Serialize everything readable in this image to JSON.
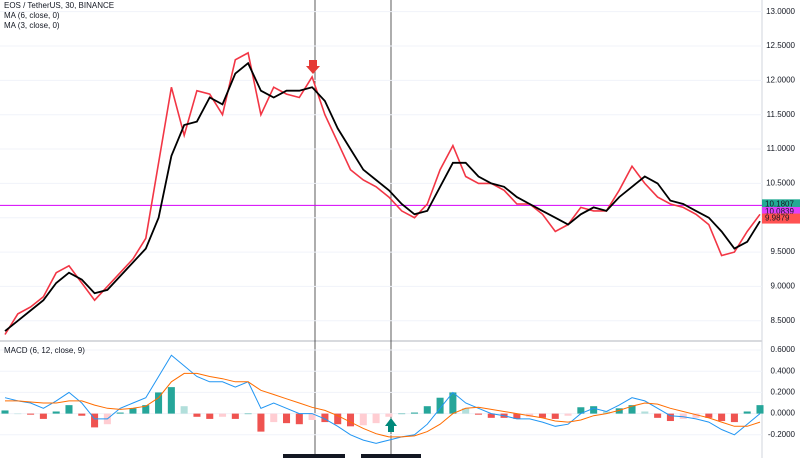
{
  "chart_data": [
    {
      "type": "line",
      "title": "EOS / TetherUS, 30, BINANCE",
      "ylim": [
        8.22,
        13.17
      ],
      "yticks": [
        {
          "value": 8.5,
          "label": "8.5000"
        },
        {
          "value": 9,
          "label": "9.0000"
        },
        {
          "value": 9.5,
          "label": "9.5000"
        },
        {
          "value": 10,
          "label": "10.0000"
        },
        {
          "value": 10.5,
          "label": "10.5000"
        },
        {
          "value": 11,
          "label": "11.0000"
        },
        {
          "value": 11.5,
          "label": "11.5000"
        },
        {
          "value": 12,
          "label": "12.0000"
        },
        {
          "value": 12.5,
          "label": "12.5000"
        },
        {
          "value": 13,
          "label": "13.0000"
        }
      ],
      "grid": true,
      "series": [
        {
          "name": "MA (6, close, 0)",
          "color": "#000000",
          "values": [
            8.35,
            8.5,
            8.65,
            8.8,
            9.05,
            9.2,
            9.1,
            8.9,
            8.95,
            9.15,
            9.35,
            9.55,
            10.0,
            10.9,
            11.35,
            11.4,
            11.75,
            11.65,
            12.1,
            12.25,
            11.85,
            11.75,
            11.85,
            11.85,
            11.9,
            11.7,
            11.3,
            11.0,
            10.7,
            10.55,
            10.4,
            10.2,
            10.05,
            10.1,
            10.45,
            10.8,
            10.8,
            10.6,
            10.5,
            10.45,
            10.3,
            10.2,
            10.1,
            10.0,
            9.9,
            10.05,
            10.15,
            10.1,
            10.3,
            10.45,
            10.6,
            10.5,
            10.25,
            10.2,
            10.1,
            10.0,
            9.8,
            9.55,
            9.65,
            9.95
          ]
        },
        {
          "name": "MA (3, close, 0)",
          "color": "#f23645",
          "values": [
            8.3,
            8.6,
            8.7,
            8.85,
            9.2,
            9.3,
            9.05,
            8.8,
            9.0,
            9.2,
            9.4,
            9.7,
            10.8,
            11.9,
            11.2,
            11.85,
            11.8,
            11.5,
            12.3,
            12.4,
            11.5,
            11.9,
            11.8,
            11.75,
            12.05,
            11.5,
            11.1,
            10.7,
            10.55,
            10.45,
            10.3,
            10.1,
            10.0,
            10.2,
            10.7,
            11.05,
            10.6,
            10.5,
            10.5,
            10.4,
            10.2,
            10.2,
            10.05,
            9.8,
            9.9,
            10.15,
            10.1,
            10.1,
            10.4,
            10.75,
            10.5,
            10.3,
            10.2,
            10.15,
            10.05,
            9.9,
            9.45,
            9.5,
            9.8,
            10.05
          ]
        }
      ],
      "hline_color": "#d500f9",
      "price_labels": [
        {
          "value": 10.1807,
          "color": "#22ab94"
        },
        {
          "value": 10.0839,
          "color": "#e040fb"
        },
        {
          "value": 9.9879,
          "color": "#ff5252"
        }
      ],
      "countdown": "24:38"
    },
    {
      "type": "macd",
      "title": "MACD (6, 12, close, 9)",
      "ylim": [
        -0.419,
        0.676
      ],
      "yticks": [
        {
          "value": -0.2,
          "label": "-0.2000"
        },
        {
          "value": 0,
          "label": "0.0000"
        },
        {
          "value": 0.2,
          "label": "0.2000"
        },
        {
          "value": 0.4,
          "label": "0.4000"
        },
        {
          "value": 0.6,
          "label": "0.6000"
        }
      ],
      "grid": true,
      "histogram": {
        "colors": [
          "#26a69a",
          "#b2dfdb",
          "#ffcdd2",
          "#ef5350"
        ],
        "values": [
          0.03,
          0,
          -0.01,
          -0.05,
          0.02,
          0.08,
          -0.02,
          -0.13,
          -0.1,
          0.01,
          0.05,
          0.08,
          0.2,
          0.25,
          0.07,
          -0.03,
          -0.05,
          -0.03,
          -0.05,
          0,
          -0.17,
          -0.08,
          -0.09,
          -0.1,
          -0.06,
          -0.08,
          -0.1,
          -0.12,
          -0.11,
          -0.09,
          -0.03,
          0,
          0.01,
          0.07,
          0.15,
          0.2,
          0.05,
          -0.01,
          -0.04,
          -0.04,
          -0.05,
          -0.03,
          -0.04,
          -0.05,
          -0.02,
          0.06,
          0.07,
          0.02,
          0.05,
          0.08,
          0.02,
          -0.04,
          -0.07,
          -0.05,
          -0.04,
          -0.04,
          -0.07,
          -0.08,
          0.02,
          0.08
        ]
      },
      "series": [
        {
          "color": "#2196f3",
          "values": [
            0.15,
            0.12,
            0.1,
            0.05,
            0.12,
            0.2,
            0.1,
            -0.05,
            -0.05,
            0.05,
            0.1,
            0.15,
            0.35,
            0.55,
            0.45,
            0.35,
            0.3,
            0.3,
            0.25,
            0.3,
            0.05,
            0.1,
            0.05,
            0.0,
            0.0,
            -0.05,
            -0.12,
            -0.2,
            -0.25,
            -0.28,
            -0.25,
            -0.22,
            -0.2,
            -0.1,
            0.05,
            0.2,
            0.1,
            0.05,
            0.0,
            -0.02,
            -0.05,
            -0.05,
            -0.08,
            -0.12,
            -0.1,
            0.0,
            0.05,
            0.02,
            0.08,
            0.15,
            0.12,
            0.05,
            -0.02,
            -0.03,
            -0.05,
            -0.08,
            -0.15,
            -0.2,
            -0.1,
            0.0
          ]
        },
        {
          "color": "#ff6d00",
          "values": [
            0.12,
            0.12,
            0.11,
            0.1,
            0.1,
            0.12,
            0.12,
            0.08,
            0.05,
            0.04,
            0.05,
            0.07,
            0.15,
            0.3,
            0.38,
            0.38,
            0.35,
            0.33,
            0.3,
            0.3,
            0.22,
            0.18,
            0.14,
            0.1,
            0.06,
            0.03,
            -0.02,
            -0.08,
            -0.14,
            -0.19,
            -0.22,
            -0.22,
            -0.21,
            -0.17,
            -0.1,
            0.0,
            0.05,
            0.06,
            0.04,
            0.02,
            0.0,
            -0.02,
            -0.04,
            -0.07,
            -0.08,
            -0.06,
            -0.02,
            0.0,
            0.03,
            0.07,
            0.1,
            0.09,
            0.05,
            0.02,
            -0.01,
            -0.04,
            -0.08,
            -0.12,
            -0.12,
            -0.08
          ]
        }
      ]
    }
  ]
}
